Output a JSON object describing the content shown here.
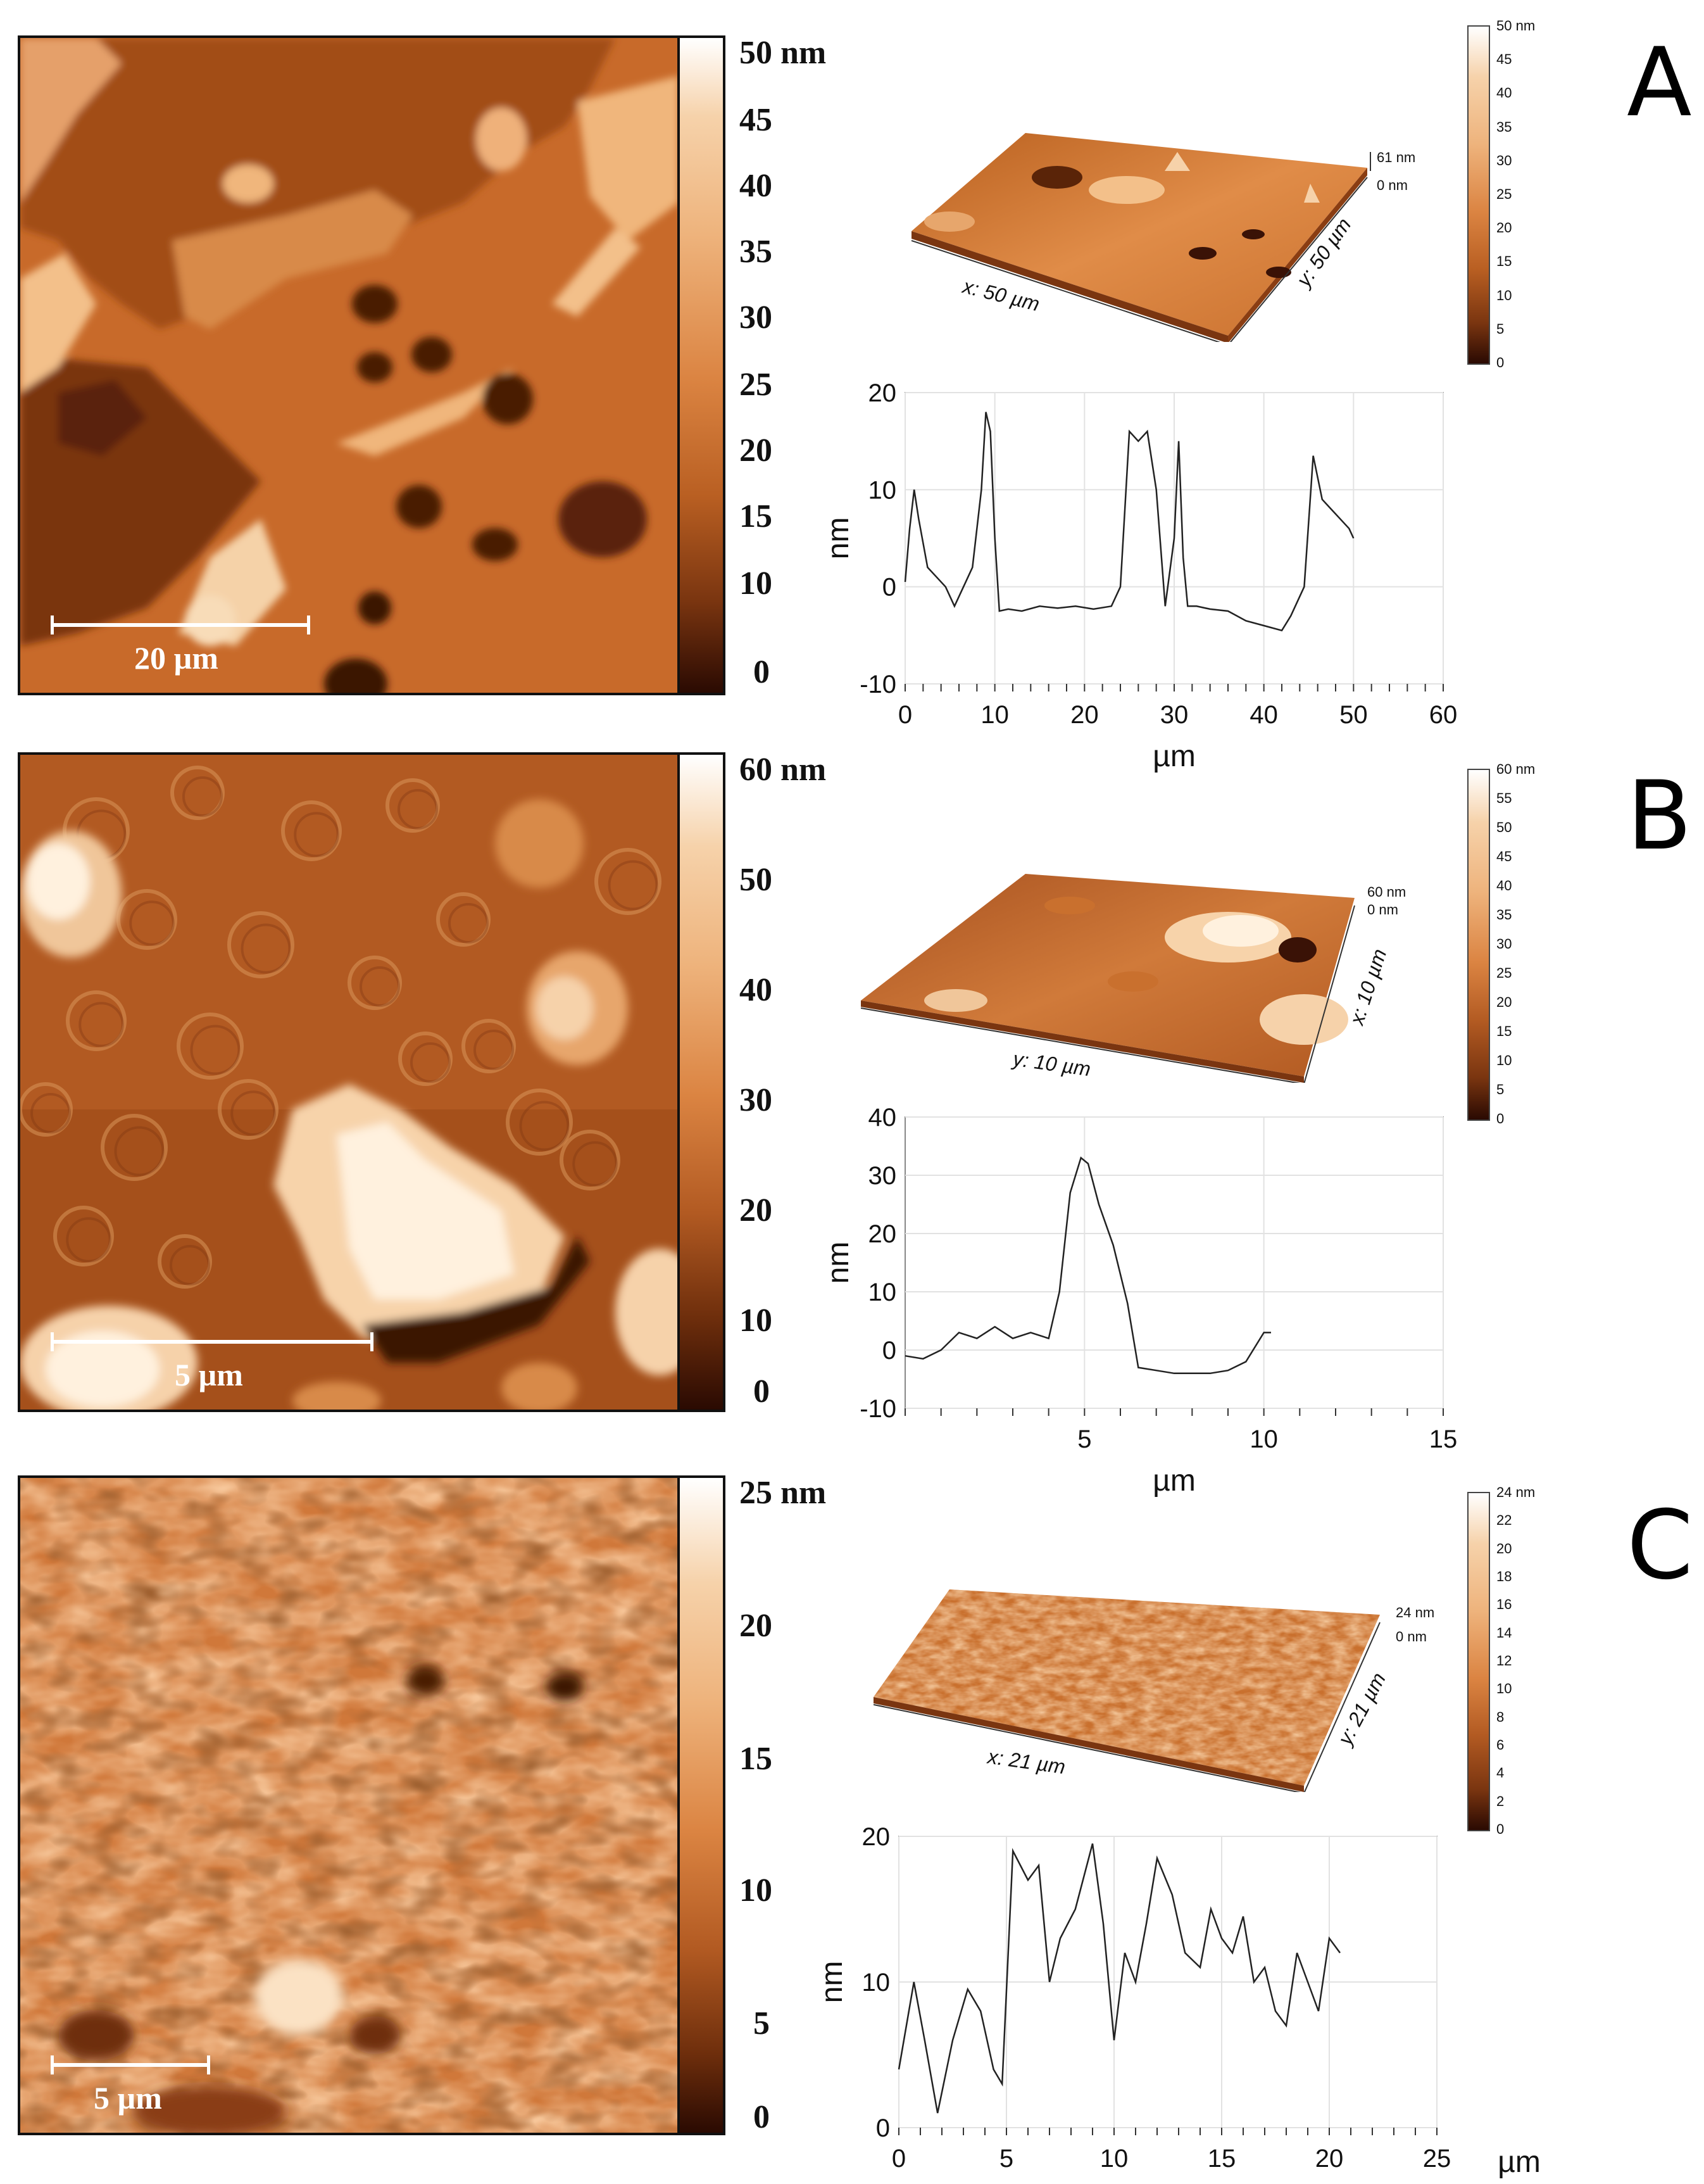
{
  "panels": [
    {
      "letter": "A",
      "scalebar_label": "20 µm",
      "colorbar_unit": "nm",
      "colorbar_ticks": [
        "50",
        "45",
        "40",
        "35",
        "30",
        "25",
        "20",
        "15",
        "10",
        "0"
      ],
      "small_colorbar_ticks": [
        "50 nm",
        "45",
        "40",
        "35",
        "30",
        "25",
        "20",
        "15",
        "10",
        "5",
        "0"
      ],
      "surface_x_label": "x: 50 µm",
      "surface_y_label": "y: 50 µm",
      "surface_z_top": "61 nm",
      "surface_z_bottom": "0 nm",
      "colors": {
        "dark": "#3a1206",
        "mid": "#c96a2a",
        "light": "#f3c08a"
      }
    },
    {
      "letter": "B",
      "scalebar_label": "5 µm",
      "colorbar_unit": "nm",
      "colorbar_ticks": [
        "60",
        "50",
        "40",
        "30",
        "20",
        "10",
        "0"
      ],
      "small_colorbar_ticks": [
        "60 nm",
        "55",
        "50",
        "45",
        "40",
        "35",
        "30",
        "25",
        "20",
        "15",
        "10",
        "5",
        "0"
      ],
      "surface_x_label": "y: 10 µm",
      "surface_y_label": "x: 10 µm",
      "surface_z_top": "60 nm",
      "surface_z_bottom": "0 nm",
      "colors": {
        "dark": "#3a1206",
        "mid": "#b25a22",
        "light": "#f7d3aa"
      }
    },
    {
      "letter": "C",
      "scalebar_label": "5 µm",
      "colorbar_unit": "nm",
      "colorbar_ticks": [
        "25",
        "20",
        "15",
        "10",
        "5",
        "0"
      ],
      "small_colorbar_ticks": [
        "24 nm",
        "22",
        "20",
        "18",
        "16",
        "14",
        "12",
        "10",
        "8",
        "6",
        "4",
        "2",
        "0"
      ],
      "surface_x_label": "x: 21 µm",
      "surface_y_label": "y: 21 µm",
      "surface_z_top": "24 nm",
      "surface_z_bottom": "0 nm",
      "colors": {
        "dark": "#3a1206",
        "mid": "#d0783a",
        "light": "#f3c49a"
      }
    }
  ],
  "chart_data": [
    {
      "type": "line",
      "xlabel": "µm",
      "ylabel": "nm",
      "xlim": [
        0,
        60
      ],
      "ylim": [
        -10,
        20
      ],
      "xticks": [
        0,
        10,
        20,
        30,
        40,
        50,
        60
      ],
      "yticks": [
        -10,
        0,
        10,
        20
      ],
      "x": [
        0,
        0.5,
        1,
        1.5,
        2.5,
        3.5,
        4.5,
        5.5,
        6.5,
        7.5,
        8.5,
        9,
        9.5,
        10,
        10.5,
        11.5,
        13,
        15,
        17,
        19,
        21,
        23,
        24,
        25,
        26,
        27,
        28,
        29,
        30,
        30.5,
        31,
        31.5,
        32.5,
        34,
        36,
        38,
        40,
        42,
        43,
        44.5,
        45.5,
        46.5,
        47.5,
        48.5,
        49.5,
        50
      ],
      "y": [
        0.5,
        6,
        10,
        7,
        2,
        1,
        0,
        -2,
        0,
        2,
        10,
        18,
        16,
        5,
        -2.5,
        -2.3,
        -2.5,
        -2,
        -2.2,
        -2,
        -2.3,
        -2,
        0,
        16,
        15,
        16,
        10,
        -2,
        5,
        15,
        3,
        -2,
        -2,
        -2.3,
        -2.5,
        -3.5,
        -4,
        -4.5,
        -3,
        0,
        13.5,
        9,
        8,
        7,
        6,
        5
      ]
    },
    {
      "type": "line",
      "xlabel": "µm",
      "ylabel": "nm",
      "xlim": [
        0,
        15
      ],
      "ylim": [
        -10,
        40
      ],
      "xticks": [
        5,
        10,
        15
      ],
      "yticks": [
        -10,
        0,
        10,
        20,
        30,
        40
      ],
      "x": [
        0,
        0.5,
        1,
        1.5,
        2,
        2.5,
        3,
        3.5,
        4,
        4.3,
        4.6,
        4.9,
        5.1,
        5.4,
        5.8,
        6.2,
        6.5,
        7,
        7.5,
        8,
        8.5,
        9,
        9.5,
        10,
        10.2
      ],
      "y": [
        -1,
        -1.5,
        0,
        3,
        2,
        4,
        2,
        3,
        2,
        10,
        27,
        33,
        32,
        25,
        18,
        8,
        -3,
        -3.5,
        -4,
        -4,
        -4,
        -3.5,
        -2,
        3,
        3
      ]
    },
    {
      "type": "line",
      "xlabel": "µm",
      "ylabel": "nm",
      "xlim": [
        0,
        25
      ],
      "ylim": [
        0,
        20
      ],
      "xticks": [
        0,
        5,
        10,
        15,
        20,
        25
      ],
      "yticks": [
        0,
        10,
        20
      ],
      "x": [
        0,
        0.7,
        1.2,
        1.8,
        2.5,
        3.2,
        3.8,
        4.4,
        4.8,
        5.3,
        6,
        6.5,
        7,
        7.5,
        8.2,
        9,
        9.5,
        10,
        10.5,
        11,
        11.5,
        12,
        12.7,
        13.3,
        14,
        14.5,
        15,
        15.5,
        16,
        16.5,
        17,
        17.5,
        18,
        18.5,
        19,
        19.5,
        20,
        20.5
      ],
      "y": [
        4,
        10,
        6,
        1,
        6,
        9.5,
        8,
        4,
        3,
        19,
        17,
        18,
        10,
        13,
        15,
        19.5,
        14,
        6,
        12,
        10,
        14,
        18.5,
        16,
        12,
        11,
        15,
        13,
        12,
        14.5,
        10,
        11,
        8,
        7,
        12,
        10,
        8,
        13,
        12
      ]
    }
  ]
}
